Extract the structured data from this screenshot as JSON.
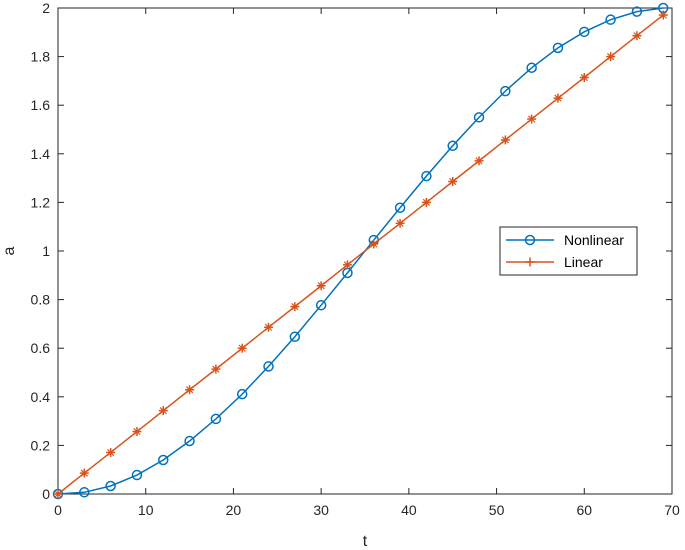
{
  "chart_data": {
    "type": "line",
    "title": "",
    "xlabel": "t",
    "ylabel": "a",
    "xlim": [
      0,
      70
    ],
    "ylim": [
      0,
      2
    ],
    "xticks": [
      0,
      10,
      20,
      30,
      40,
      50,
      60,
      70
    ],
    "yticks": [
      0,
      0.2,
      0.4,
      0.6,
      0.8,
      1,
      1.2,
      1.4,
      1.6,
      1.8,
      2
    ],
    "grid": false,
    "legend_position": "right",
    "series": [
      {
        "name": "Nonlinear",
        "color": "#0072BD",
        "marker": "circle",
        "x": [
          0,
          3,
          6,
          9,
          12,
          15,
          18,
          21,
          24,
          27,
          30,
          33,
          36,
          39,
          42,
          45,
          48,
          51,
          54,
          57,
          60,
          63,
          66,
          69
        ],
        "y": [
          0,
          0.007,
          0.033,
          0.078,
          0.14,
          0.218,
          0.309,
          0.411,
          0.525,
          0.647,
          0.777,
          0.91,
          1.045,
          1.178,
          1.308,
          1.433,
          1.55,
          1.658,
          1.754,
          1.836,
          1.902,
          1.952,
          1.985,
          2.0
        ]
      },
      {
        "name": "Linear",
        "color": "#D95319",
        "marker": "plus",
        "x": [
          0,
          3,
          6,
          9,
          12,
          15,
          18,
          21,
          24,
          27,
          30,
          33,
          36,
          39,
          42,
          45,
          48,
          51,
          54,
          57,
          60,
          63,
          66,
          69
        ],
        "y": [
          0,
          0.086,
          0.171,
          0.257,
          0.343,
          0.429,
          0.514,
          0.6,
          0.686,
          0.771,
          0.857,
          0.943,
          1.029,
          1.114,
          1.2,
          1.286,
          1.371,
          1.457,
          1.543,
          1.629,
          1.714,
          1.8,
          1.886,
          1.971
        ]
      }
    ]
  }
}
